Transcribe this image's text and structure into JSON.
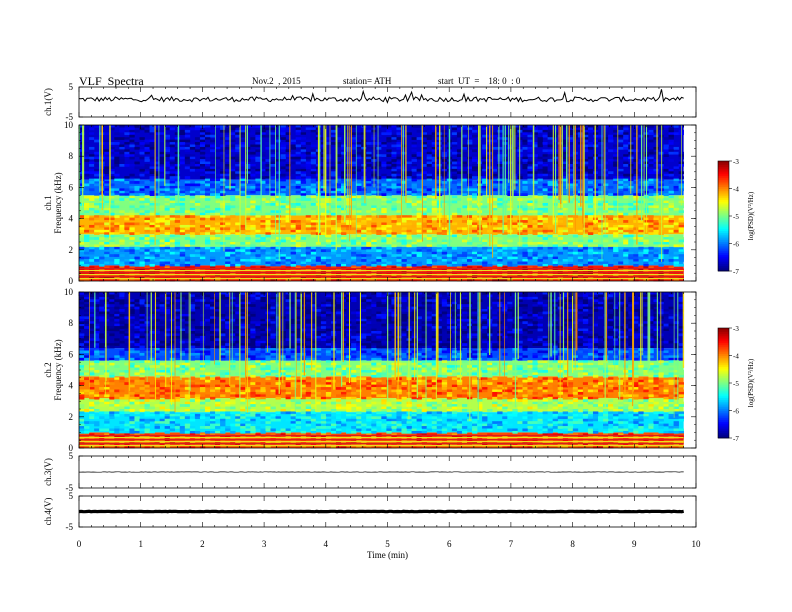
{
  "header": {
    "title": "VLF  Spectra",
    "date": "Nov.2  , 2015",
    "station": "station= ATH",
    "start_ut": "start  UT  =    18: 0  : 0"
  },
  "chart_data": [
    {
      "type": "line",
      "panel": "ch1-waveform",
      "ylabel": "ch.1(V)",
      "y_ticks": [
        "5",
        "-5"
      ],
      "ylim": [
        -5,
        5
      ],
      "baseline": 0.9,
      "color": "#000000"
    },
    {
      "type": "heatmap",
      "panel": "ch1-spectrogram",
      "ylabel": "ch.1\nFrequency  (kHz)",
      "y_ticks": [
        "0",
        "2",
        "4",
        "6",
        "8",
        "10"
      ],
      "ylim": [
        0,
        10
      ],
      "colorbar": {
        "label": "log(PSD)(V²/Hz)",
        "ticks": [
          "-3",
          "-4",
          "-5",
          "-6",
          "-7"
        ],
        "range": [
          -7,
          -3
        ]
      },
      "description_bands": [
        {
          "from_khz": 0.0,
          "to_khz": 1.0,
          "level": -3.6
        },
        {
          "from_khz": 1.0,
          "to_khz": 2.2,
          "level": -5.9
        },
        {
          "from_khz": 2.2,
          "to_khz": 3.0,
          "level": -5.0
        },
        {
          "from_khz": 3.0,
          "to_khz": 4.2,
          "level": -4.2
        },
        {
          "from_khz": 4.2,
          "to_khz": 5.5,
          "level": -5.0
        },
        {
          "from_khz": 5.5,
          "to_khz": 6.5,
          "level": -6.1
        },
        {
          "from_khz": 6.5,
          "to_khz": 10.0,
          "level": -6.7
        }
      ]
    },
    {
      "type": "heatmap",
      "panel": "ch2-spectrogram",
      "ylabel": "ch.2\nFrequency  (kHz)",
      "y_ticks": [
        "0",
        "2",
        "4",
        "6",
        "8",
        "10"
      ],
      "ylim": [
        0,
        10
      ],
      "colorbar": {
        "label": "log(PSD)(V²/Hz)",
        "ticks": [
          "-3",
          "-4",
          "-5",
          "-6",
          "-7"
        ],
        "range": [
          -7,
          -3
        ]
      },
      "description_bands": [
        {
          "from_khz": 0.0,
          "to_khz": 1.0,
          "level": -3.8
        },
        {
          "from_khz": 1.0,
          "to_khz": 2.3,
          "level": -5.6
        },
        {
          "from_khz": 2.3,
          "to_khz": 3.2,
          "level": -4.8
        },
        {
          "from_khz": 3.2,
          "to_khz": 4.6,
          "level": -4.0
        },
        {
          "from_khz": 4.6,
          "to_khz": 5.6,
          "level": -5.0
        },
        {
          "from_khz": 5.6,
          "to_khz": 6.4,
          "level": -6.2
        },
        {
          "from_khz": 6.4,
          "to_khz": 10.0,
          "level": -6.8
        }
      ]
    },
    {
      "type": "line",
      "panel": "ch3-waveform",
      "ylabel": "ch.3(V)",
      "y_ticks": [
        "5",
        "-5"
      ],
      "ylim": [
        -5,
        5
      ],
      "baseline": 0.0,
      "color": "#000000"
    },
    {
      "type": "line",
      "panel": "ch4-waveform",
      "ylabel": "ch.4(V)",
      "y_ticks": [
        "5",
        "-5"
      ],
      "ylim": [
        -5,
        5
      ],
      "baseline": 0.0,
      "color": "#000000"
    }
  ],
  "x_axis": {
    "label": "Time  (min)",
    "ticks": [
      "0",
      "1",
      "2",
      "3",
      "4",
      "5",
      "6",
      "7",
      "8",
      "9",
      "10"
    ],
    "range": [
      0,
      10
    ],
    "data_end": 9.8
  }
}
